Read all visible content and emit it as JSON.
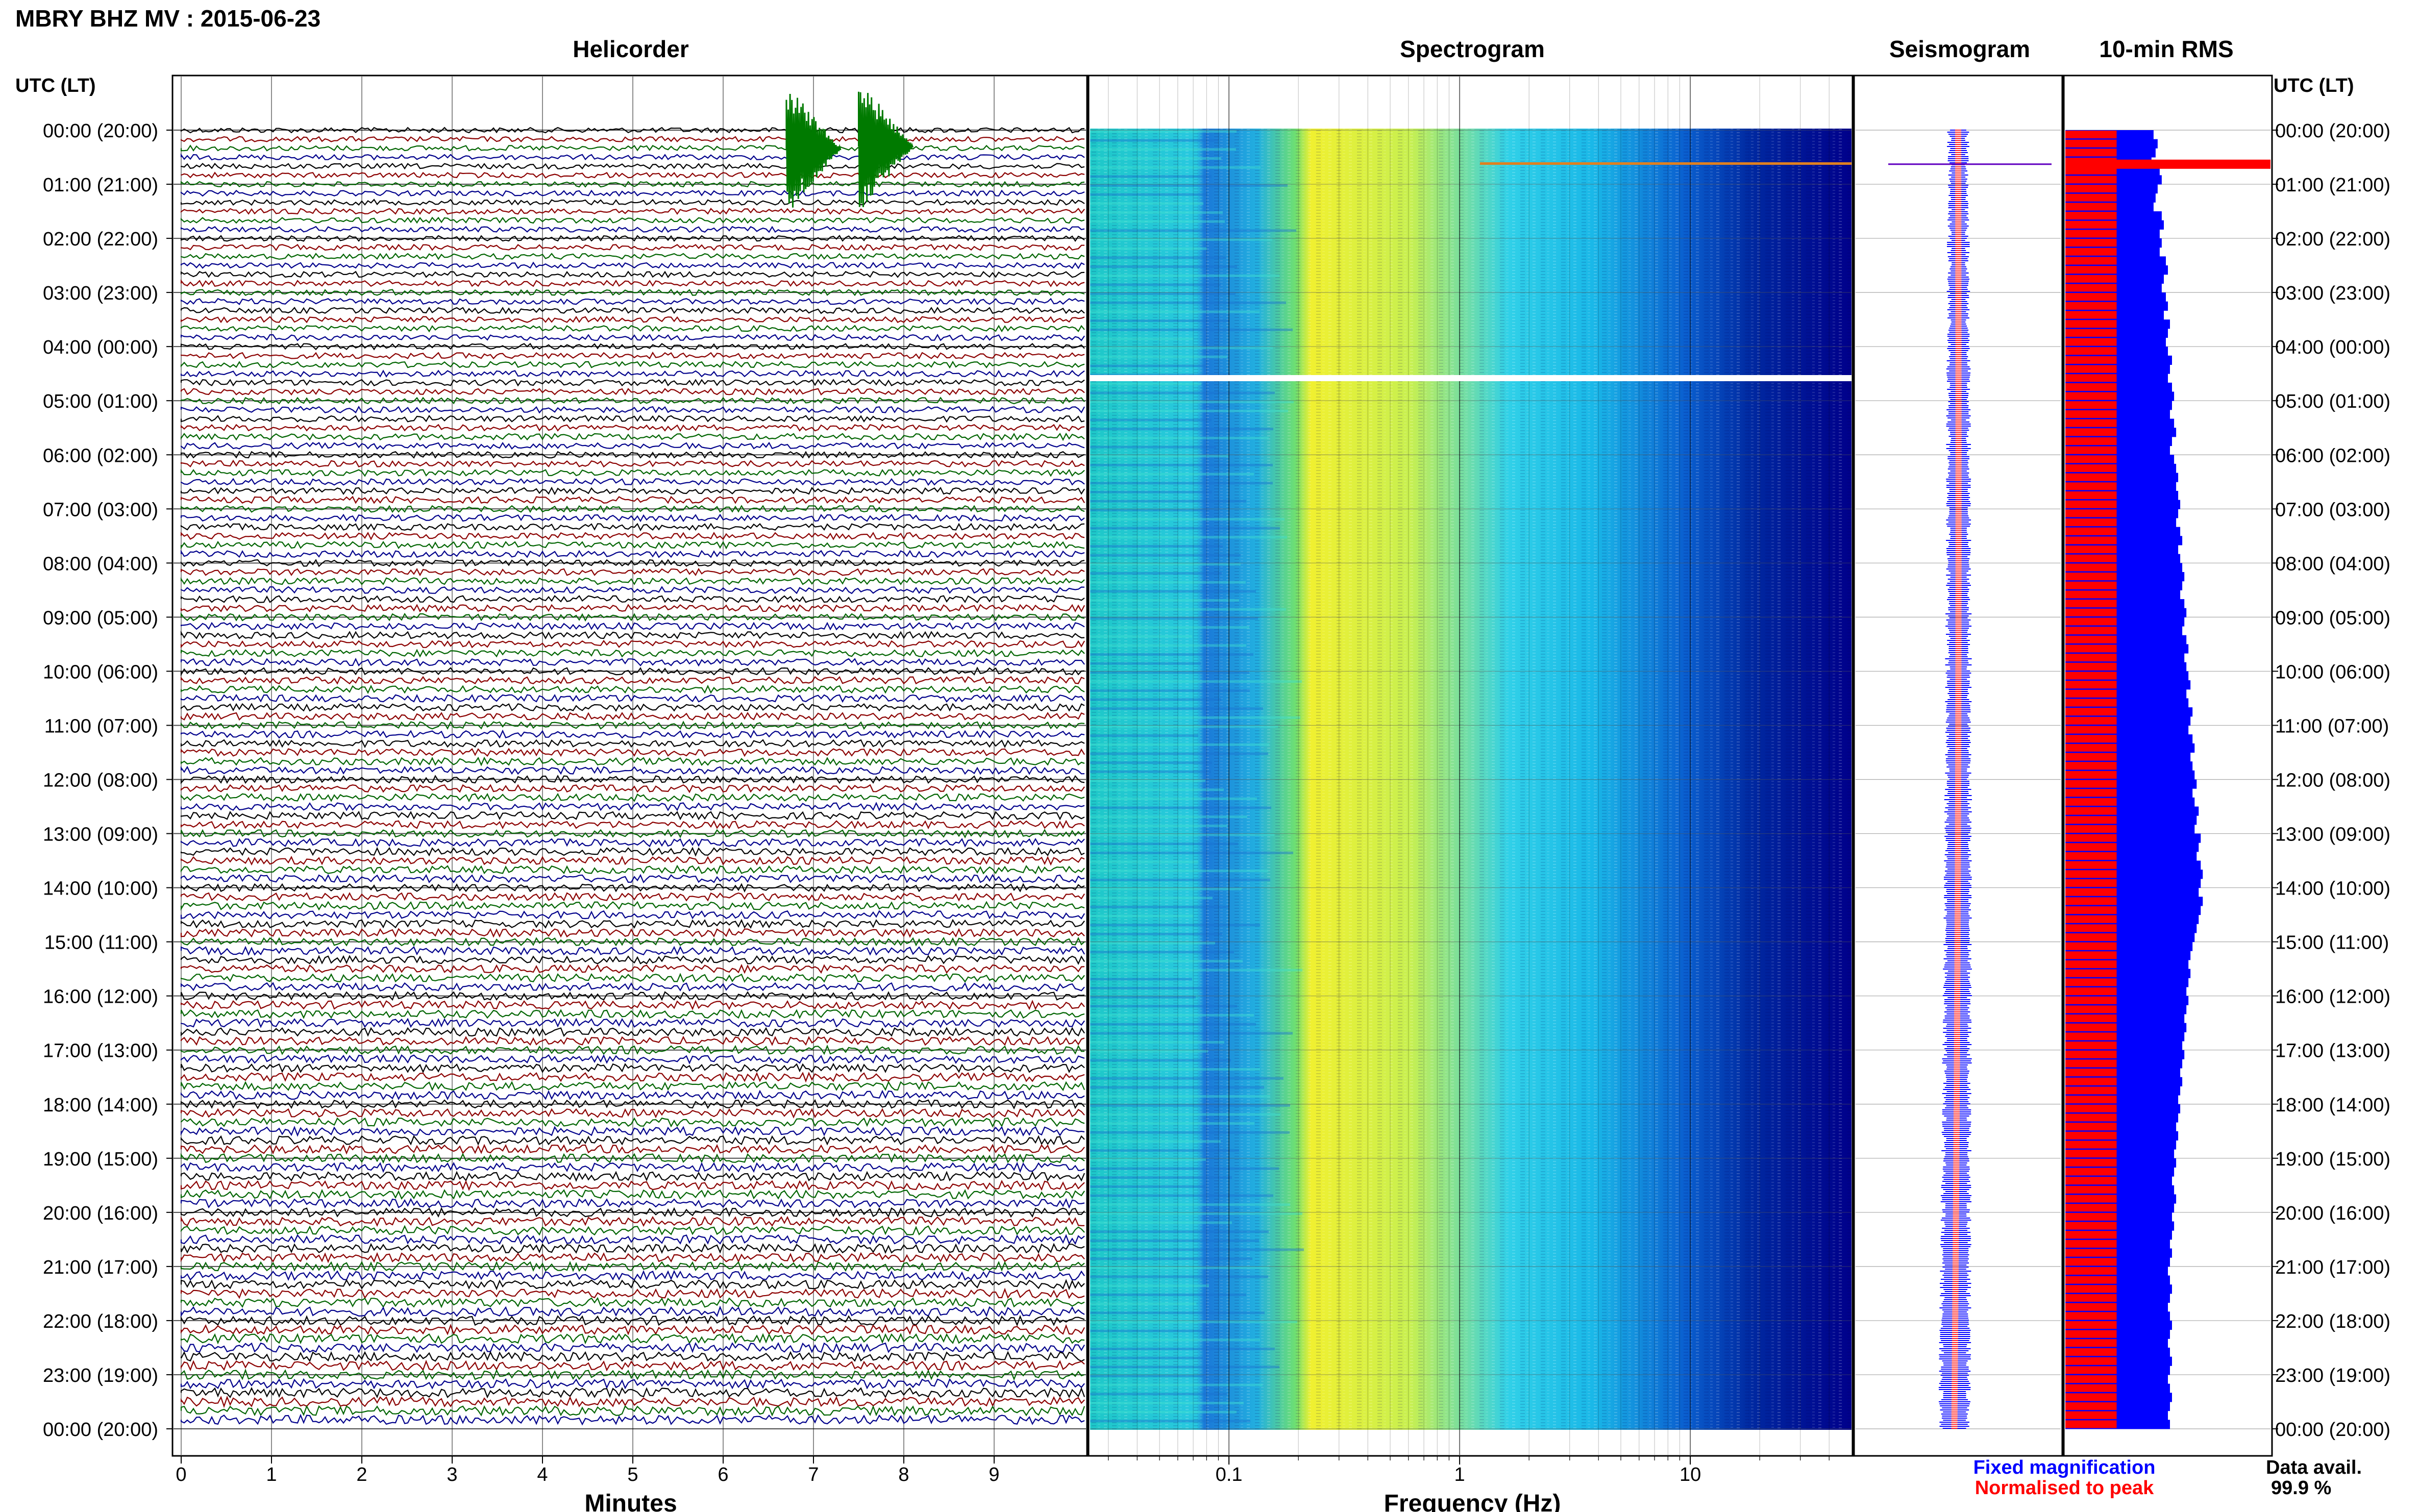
{
  "header": {
    "title": "MBRY BHZ MV : 2015-06-23"
  },
  "panels": {
    "helicorder": "Helicorder",
    "spectrogram": "Spectrogram",
    "seismogram": "Seismogram",
    "rms": "10-min RMS"
  },
  "axis": {
    "left_header": "UTC (LT)",
    "right_header": "UTC (LT)",
    "time_labels": [
      "00:00 (20:00)",
      "01:00 (21:00)",
      "02:00 (22:00)",
      "03:00 (23:00)",
      "04:00 (00:00)",
      "05:00 (01:00)",
      "06:00 (02:00)",
      "07:00 (03:00)",
      "08:00 (04:00)",
      "09:00 (05:00)",
      "10:00 (06:00)",
      "11:00 (07:00)",
      "12:00 (08:00)",
      "13:00 (09:00)",
      "14:00 (10:00)",
      "15:00 (11:00)",
      "16:00 (12:00)",
      "17:00 (13:00)",
      "18:00 (14:00)",
      "19:00 (15:00)",
      "20:00 (16:00)",
      "21:00 (17:00)",
      "22:00 (18:00)",
      "23:00 (19:00)",
      "00:00 (20:00)"
    ],
    "minutes_label": "Minutes",
    "minutes_ticks": [
      "0",
      "1",
      "2",
      "3",
      "4",
      "5",
      "6",
      "7",
      "8",
      "9"
    ],
    "frequency_label": "Frequency (Hz)",
    "frequency_ticks": [
      "0.1",
      "1",
      "10"
    ]
  },
  "legend": {
    "fixed": "Fixed magnification",
    "normalised": "Normalised to peak",
    "fixed_color": "#0000ff",
    "normalised_color": "#ff0000"
  },
  "data_avail": {
    "label": "Data avail.",
    "value": "99.9 %"
  },
  "colors": {
    "trace_cycle": [
      "#000000",
      "#8b0000",
      "#006400",
      "#00008b"
    ],
    "spectrogram_low": "#00008b",
    "spectrogram_mid": "#00ffff",
    "spectrogram_high": "#ffff00",
    "rms_fixed": "#0000ff",
    "rms_normalised": "#ff0000"
  },
  "chart_data": {
    "type": "heatmap",
    "title": "MBRY BHZ MV : 2015-06-23",
    "hours_utc": 24,
    "helicorder": {
      "minutes_per_line": 10,
      "lines": 144,
      "xlabel": "Minutes",
      "xlim": [
        0,
        10
      ],
      "events": [
        {
          "hour_utc": 0.35,
          "minute": 6.7,
          "note": "large green signal"
        },
        {
          "hour_utc": 0.3,
          "minute": 7.5,
          "note": "large green signal"
        }
      ]
    },
    "spectrogram": {
      "xlabel": "Frequency (Hz)",
      "xscale": "log",
      "xlim": [
        0.025,
        50
      ],
      "data_gap_hour_utc": 4.6,
      "spike_hour_utc": 0.63
    },
    "rms_10min": {
      "bins": 144,
      "fixed_level_relative": [
        0.43,
        0.45,
        0.44,
        0.42,
        0.46,
        0.47,
        0.45,
        0.44,
        0.43,
        0.47,
        0.48,
        0.46,
        0.47,
        0.46,
        0.49,
        0.5,
        0.48,
        0.47,
        0.49,
        0.5,
        0.48,
        0.51,
        0.5,
        0.49,
        0.5,
        0.52,
        0.51,
        0.5,
        0.52,
        0.53,
        0.52,
        0.51,
        0.53,
        0.54,
        0.52,
        0.51,
        0.53,
        0.54,
        0.55,
        0.54,
        0.55,
        0.56,
        0.55,
        0.54,
        0.56,
        0.57,
        0.55,
        0.56,
        0.57,
        0.58,
        0.57,
        0.56,
        0.58,
        0.59,
        0.58,
        0.57,
        0.59,
        0.6,
        0.58,
        0.59,
        0.6,
        0.61,
        0.59,
        0.6,
        0.62,
        0.61,
        0.6,
        0.62,
        0.63,
        0.61,
        0.62,
        0.63,
        0.64,
        0.62,
        0.63,
        0.65,
        0.64,
        0.63,
        0.66,
        0.65,
        0.64,
        0.66,
        0.67,
        0.66,
        0.65,
        0.67,
        0.66,
        0.65,
        0.64,
        0.63,
        0.62,
        0.61,
        0.6,
        0.61,
        0.6,
        0.59,
        0.6,
        0.59,
        0.58,
        0.59,
        0.58,
        0.57,
        0.58,
        0.57,
        0.56,
        0.57,
        0.56,
        0.55,
        0.56,
        0.55,
        0.54,
        0.55,
        0.54,
        0.53,
        0.54,
        0.53,
        0.52,
        0.53,
        0.54,
        0.53,
        0.52,
        0.53,
        0.52,
        0.51,
        0.52,
        0.51,
        0.5,
        0.51,
        0.52,
        0.51,
        0.5,
        0.51,
        0.52,
        0.51,
        0.5,
        0.51,
        0.52,
        0.51,
        0.5,
        0.51,
        0.52,
        0.51,
        0.5,
        0.51
      ],
      "normalised_level_relative": 0.25,
      "spike_hour_utc": 0.63
    }
  }
}
